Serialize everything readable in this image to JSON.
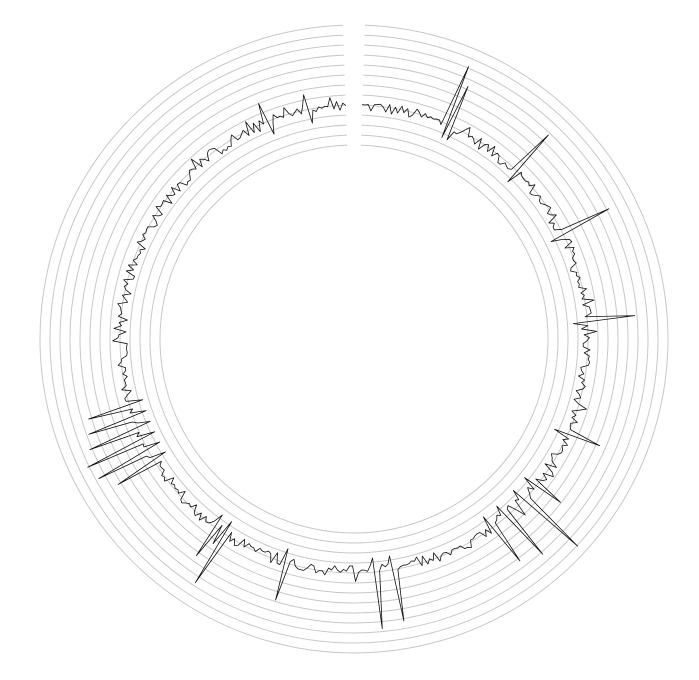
{
  "chart_data": {
    "type": "line",
    "layout": "polar-circular",
    "title": "",
    "xlabel": "",
    "ylabel": "",
    "ring_count": 13,
    "start_angle_deg": 0,
    "gap_deg": 4,
    "direction": "clockwise",
    "series_color": "#111111",
    "grid_color": "#c8c8c8",
    "y_range": [
      -1,
      12
    ],
    "n_points": 480,
    "baseline": 3,
    "spikes": [
      {
        "index": 28,
        "value": 10
      },
      {
        "index": 30,
        "value": 8
      },
      {
        "index": 56,
        "value": 8.5
      },
      {
        "index": 82,
        "value": 9
      },
      {
        "index": 112,
        "value": 8.5
      },
      {
        "index": 150,
        "value": 7
      },
      {
        "index": 170,
        "value": 6.5
      },
      {
        "index": 176,
        "value": 11
      },
      {
        "index": 184,
        "value": 9
      },
      {
        "index": 190,
        "value": 8
      },
      {
        "index": 226,
        "value": 9
      },
      {
        "index": 232,
        "value": 9.5
      },
      {
        "index": 262,
        "value": 7.5
      },
      {
        "index": 284,
        "value": 9.5
      },
      {
        "index": 288,
        "value": 7
      },
      {
        "index": 318,
        "value": 8
      },
      {
        "index": 322,
        "value": 9.5
      },
      {
        "index": 326,
        "value": 10
      },
      {
        "index": 330,
        "value": 9
      },
      {
        "index": 334,
        "value": 8.5
      },
      {
        "index": 338,
        "value": 8
      },
      {
        "index": 452,
        "value": 5.5
      },
      {
        "index": 466,
        "value": 5
      }
    ]
  }
}
